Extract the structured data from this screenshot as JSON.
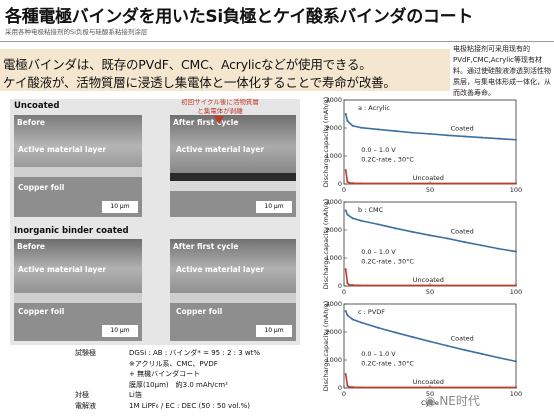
{
  "header": {
    "title": "各種電極バインダを用いたSi負極とケイ酸系バインダのコート",
    "subtitle": "采用各种电极粘接剂的Si负极与硅酸系粘接剂涂层"
  },
  "highlight": {
    "line1": "電極バインダは、既存のPVdF、CMC、Acrylicなどが使用できる。",
    "line2": "ケイ酸液が、活物質層に浸透し集電体と一体化することで寿命が改善。"
  },
  "side_note": "电极粘接剂可采用现有的PVdF,CMC,Acrylic等现有材料。通过使硅酸液渗透到活性物质层，与集电体形成一体化，从而改善寿命。",
  "sem": {
    "uncoated_heading": "Uncoated",
    "coated_heading": "Inorganic binder coated",
    "callout": "初回サイクル後に活物質層と集電体が剥離",
    "before": "Before",
    "after": "After first cycle",
    "active_layer": "Active material layer",
    "copper_foil": "Copper foil",
    "scale": "10 µm"
  },
  "details": [
    {
      "key": "試験極",
      "val": "DGSi : AB : バインダ* = 95 : 2 : 3 wt%"
    },
    {
      "key": "",
      "val": "※アクリル系、CMC、PVDF"
    },
    {
      "key": "",
      "val": "+ 無機バインダコート"
    },
    {
      "key": "",
      "val": "膜厚(10µm)　約3.0 mAh/cm²"
    },
    {
      "key": "対極",
      "val": "Li箔"
    },
    {
      "key": "電解液",
      "val": "1M LiPF₆ / EC : DEC (50 : 50 vol.%)"
    }
  ],
  "watermark": "NE时代",
  "chart_data": [
    {
      "type": "line",
      "title": "a : Acrylic",
      "ylabel": "Discharge capacity (mAh/g)",
      "xlabel": "",
      "ylim": [
        0,
        3000
      ],
      "xlim": [
        0,
        100
      ],
      "yticks": [
        0,
        1000,
        2000,
        3000
      ],
      "xticks": [
        0,
        50,
        100
      ],
      "condition1": "0.0 – 1.0 V",
      "condition2": "0.2C-rate , 30°C",
      "series": [
        {
          "name": "Coated",
          "color": "#3d6fa0",
          "x": [
            1,
            2,
            5,
            10,
            20,
            30,
            40,
            50,
            60,
            70,
            80,
            90,
            100
          ],
          "y": [
            2500,
            2250,
            2080,
            2010,
            1950,
            1890,
            1830,
            1790,
            1740,
            1700,
            1660,
            1620,
            1580
          ]
        },
        {
          "name": "Uncoated",
          "color": "#c0392b",
          "x": [
            1,
            2,
            3,
            5,
            10,
            50,
            100
          ],
          "y": [
            500,
            80,
            40,
            30,
            20,
            20,
            20
          ]
        }
      ]
    },
    {
      "type": "line",
      "title": "b : CMC",
      "ylabel": "Discharge capacity (mAh/g)",
      "xlabel": "",
      "ylim": [
        0,
        3000
      ],
      "xlim": [
        0,
        100
      ],
      "yticks": [
        0,
        1000,
        2000,
        3000
      ],
      "xticks": [
        0,
        50,
        100
      ],
      "condition1": "0.0 – 1.0 V",
      "condition2": "0.2C-rate , 30°C",
      "series": [
        {
          "name": "Coated",
          "color": "#3d6fa0",
          "x": [
            1,
            2,
            5,
            10,
            20,
            30,
            40,
            50,
            60,
            70,
            80,
            90,
            100
          ],
          "y": [
            2700,
            2550,
            2420,
            2330,
            2200,
            2060,
            1930,
            1810,
            1700,
            1570,
            1450,
            1330,
            1230
          ]
        },
        {
          "name": "Uncoated",
          "color": "#c0392b",
          "x": [
            1,
            2,
            3,
            5,
            10,
            50,
            100
          ],
          "y": [
            600,
            100,
            40,
            30,
            20,
            20,
            20
          ]
        }
      ]
    },
    {
      "type": "line",
      "title": "c : PVDF",
      "ylabel": "Discharge capacity (mAh/g)",
      "xlabel": "Cycle",
      "ylim": [
        0,
        3000
      ],
      "xlim": [
        0,
        100
      ],
      "yticks": [
        0,
        1000,
        2000,
        3000
      ],
      "xticks": [
        0,
        50,
        100
      ],
      "condition1": "0.0 – 1.0 V",
      "condition2": "0.2C-rate , 30°C",
      "series": [
        {
          "name": "Coated",
          "color": "#3d6fa0",
          "x": [
            1,
            2,
            5,
            10,
            20,
            30,
            40,
            50,
            60,
            70,
            80,
            90,
            100
          ],
          "y": [
            2750,
            2600,
            2450,
            2340,
            2150,
            1980,
            1820,
            1660,
            1510,
            1360,
            1220,
            1080,
            950
          ]
        },
        {
          "name": "Uncoated",
          "color": "#c0392b",
          "x": [
            1,
            2,
            3,
            5,
            10,
            50,
            100
          ],
          "y": [
            500,
            80,
            40,
            30,
            20,
            20,
            20
          ]
        }
      ]
    }
  ]
}
